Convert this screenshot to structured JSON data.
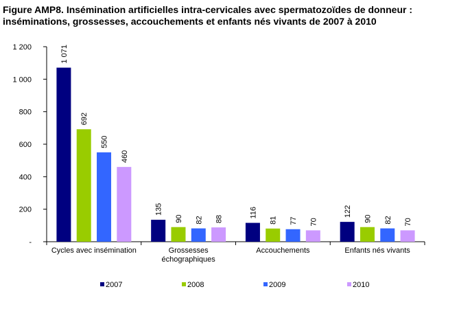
{
  "chart_data": {
    "type": "bar",
    "title": "Figure AMP8. Insémination artificielles intra-cervicales avec spermatozoïdes de donneur :",
    "subtitle": "inséminations, grossesses, accouchements et enfants nés vivants de  2007 à 2010",
    "categories": [
      [
        "Cycles avec insémination"
      ],
      [
        "Grossesses",
        "échographiques"
      ],
      [
        "Accouchements"
      ],
      [
        "Enfants nés vivants"
      ]
    ],
    "series": [
      {
        "name": "2007",
        "color": "#000080",
        "values": [
          1071,
          135,
          116,
          122
        ],
        "labels": [
          "1 071",
          "135",
          "116",
          "122"
        ]
      },
      {
        "name": "2008",
        "color": "#99CC00",
        "values": [
          692,
          90,
          81,
          90
        ],
        "labels": [
          "692",
          "90",
          "81",
          "90"
        ]
      },
      {
        "name": "2009",
        "color": "#3366FF",
        "values": [
          550,
          82,
          77,
          82
        ],
        "labels": [
          "550",
          "82",
          "77",
          "82"
        ]
      },
      {
        "name": "2010",
        "color": "#CC99FF",
        "values": [
          460,
          88,
          70,
          70
        ],
        "labels": [
          "460",
          "88",
          "70",
          "70"
        ]
      }
    ],
    "ylim": [
      0,
      1200
    ],
    "yticks": [
      0,
      200,
      400,
      600,
      800,
      1000,
      1200
    ],
    "ytick_labels": [
      "-",
      "200",
      "400",
      "600",
      "800",
      "1 000",
      "1 200"
    ],
    "xlabel": "",
    "ylabel": "",
    "grid": false,
    "legend_position": "bottom"
  }
}
